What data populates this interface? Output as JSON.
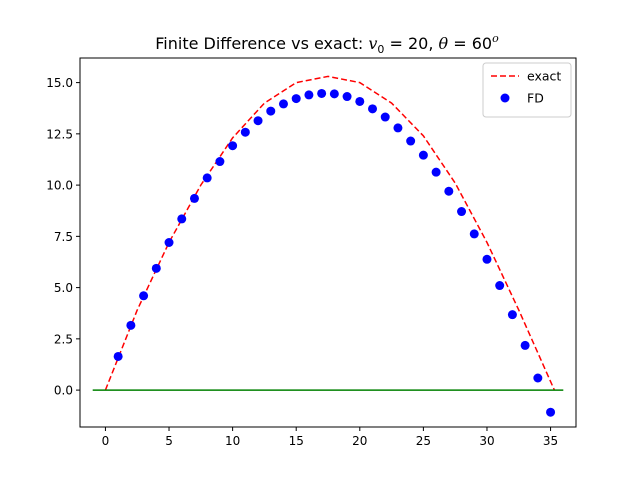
{
  "chart_data": {
    "type": "line",
    "title": "Finite Difference vs exact: v₀ = 20, θ = 60°",
    "title_parts": {
      "prefix": "Finite Difference vs exact: ",
      "v_sym": "v",
      "v_sub": "0",
      "v_eq": " = 20, ",
      "theta_sym": "θ",
      "theta_eq": " = 60",
      "theta_sup": "o"
    },
    "xlabel": "",
    "ylabel": "",
    "xlim": [
      -2,
      37
    ],
    "ylim": [
      -1.8,
      16.2
    ],
    "x_ticks": [
      0,
      5,
      10,
      15,
      20,
      25,
      30,
      35
    ],
    "y_ticks": [
      0.0,
      2.5,
      5.0,
      7.5,
      10.0,
      12.5,
      15.0
    ],
    "x_tick_labels": [
      "0",
      "5",
      "10",
      "15",
      "20",
      "25",
      "30",
      "35"
    ],
    "y_tick_labels": [
      "0.0",
      "2.5",
      "5.0",
      "7.5",
      "10.0",
      "12.5",
      "15.0"
    ],
    "grid": false,
    "legend_position": "top-right",
    "series": [
      {
        "name": "exact",
        "kind": "line",
        "style": "dashed",
        "color": "#ff0000",
        "x": [
          0,
          2.5,
          5,
          7.5,
          10,
          12.5,
          15,
          17.5,
          20,
          22.5,
          25,
          27.5,
          30,
          32.5,
          35.3
        ],
        "y": [
          0,
          3.9,
          7.2,
          10.0,
          12.3,
          14.0,
          15.0,
          15.3,
          15.0,
          14.0,
          12.4,
          10.1,
          7.2,
          3.9,
          0
        ]
      },
      {
        "name": "FD",
        "kind": "scatter",
        "color": "#0000ff",
        "x": [
          1,
          2,
          3,
          4,
          5,
          6,
          7,
          8,
          9,
          10,
          11,
          12,
          13,
          14,
          15,
          16,
          17,
          18,
          19,
          20,
          21,
          22,
          23,
          24,
          25,
          26,
          27,
          28,
          29,
          30,
          31,
          32,
          33,
          34,
          35
        ],
        "y": [
          1.64,
          3.16,
          4.6,
          5.94,
          7.2,
          8.35,
          9.35,
          10.35,
          11.15,
          11.92,
          12.58,
          13.14,
          13.61,
          13.96,
          14.22,
          14.4,
          14.47,
          14.45,
          14.32,
          14.08,
          13.72,
          13.32,
          12.79,
          12.15,
          11.46,
          10.63,
          9.7,
          8.71,
          7.62,
          6.38,
          5.1,
          3.68,
          2.18,
          0.59,
          -1.08
        ]
      },
      {
        "kind": "line",
        "style": "solid",
        "color": "#008000",
        "x": [
          -1,
          36
        ],
        "y": [
          0,
          0
        ]
      }
    ]
  }
}
